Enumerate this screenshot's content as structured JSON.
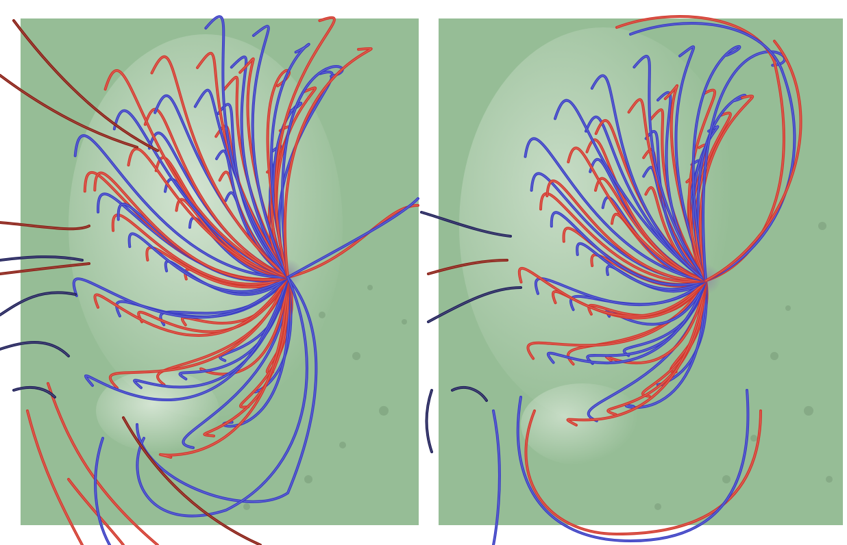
{
  "figure": {
    "panels": [
      {
        "id": "left",
        "magnetogram_color": "#96bd96",
        "field_line_colors": [
          "#d33a2e",
          "#3b3fc4",
          "#8a1e14",
          "#20205a"
        ]
      },
      {
        "id": "right",
        "magnetogram_color": "#96bd96",
        "field_line_colors": [
          "#d33a2e",
          "#3b3fc4",
          "#6a1f4a",
          "#2a1a55"
        ]
      }
    ],
    "colors": {
      "background": "#ffffff",
      "red_line": "#d33a2e",
      "blue_line": "#3b3fc4",
      "dark_red_line": "#8a1e14",
      "dark_blue_line": "#20205a"
    }
  }
}
